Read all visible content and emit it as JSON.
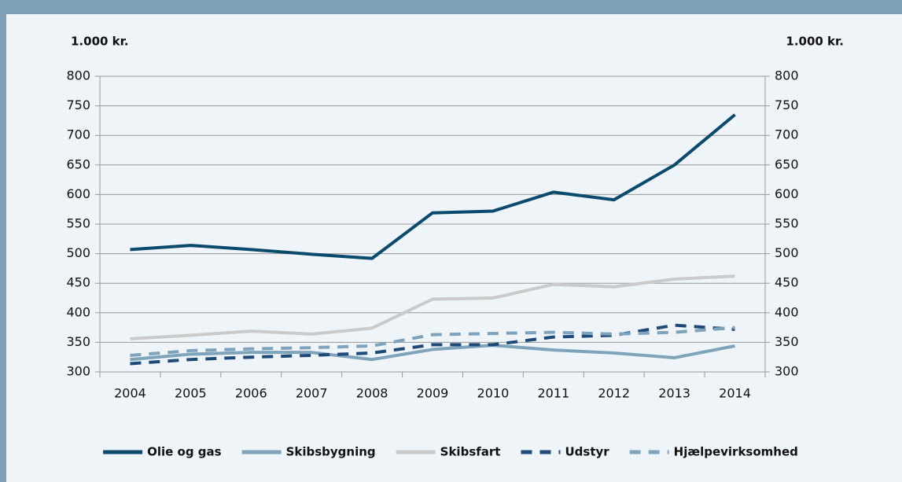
{
  "chart_data": {
    "type": "line",
    "ylabel": "1.000 kr.",
    "y2label": "1.000 kr.",
    "categories": [
      "2004",
      "2005",
      "2006",
      "2007",
      "2008",
      "2009",
      "2010",
      "2011",
      "2012",
      "2013",
      "2014"
    ],
    "series": [
      {
        "name": "Olie og gas",
        "color": "#0b4a6c",
        "dash": false,
        "values": [
          507,
          514,
          507,
          499,
          492,
          569,
          572,
          604,
          591,
          650,
          735
        ]
      },
      {
        "name": "Skibsbygning",
        "color": "#7fa3bb",
        "dash": false,
        "values": [
          321,
          330,
          333,
          333,
          321,
          338,
          345,
          337,
          332,
          324,
          344
        ]
      },
      {
        "name": "Skibsfart",
        "color": "#cacaca",
        "dash": false,
        "values": [
          356,
          362,
          369,
          364,
          374,
          423,
          425,
          448,
          444,
          457,
          462
        ]
      },
      {
        "name": "Udstyr",
        "color": "#1f4a78",
        "dash": true,
        "values": [
          314,
          321,
          325,
          328,
          332,
          346,
          346,
          359,
          362,
          379,
          372
        ]
      },
      {
        "name": "Hjælpevirksomhed",
        "color": "#7fa3bb",
        "dash": true,
        "values": [
          328,
          336,
          339,
          341,
          344,
          363,
          365,
          367,
          364,
          367,
          375
        ]
      }
    ],
    "ylim": [
      300,
      800
    ],
    "yticks": [
      300,
      350,
      400,
      450,
      500,
      550,
      600,
      650,
      700,
      750,
      800
    ],
    "y2lim": [
      300,
      800
    ],
    "y2ticks": [
      300,
      350,
      400,
      450,
      500,
      550,
      600,
      650,
      700,
      750,
      800
    ],
    "grid": true,
    "legend": "bottom"
  }
}
